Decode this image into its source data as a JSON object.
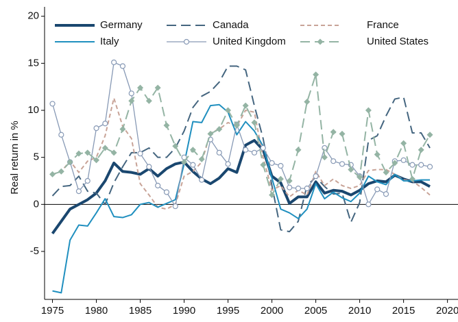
{
  "chart_data": {
    "type": "line",
    "y_label": "Real return in %",
    "x": [
      1975,
      1976,
      1977,
      1978,
      1979,
      1980,
      1981,
      1982,
      1983,
      1984,
      1985,
      1986,
      1987,
      1988,
      1989,
      1990,
      1991,
      1992,
      1993,
      1994,
      1995,
      1996,
      1997,
      1998,
      1999,
      2000,
      2001,
      2002,
      2003,
      2004,
      2005,
      2006,
      2007,
      2008,
      2009,
      2010,
      2011,
      2012,
      2013,
      2014,
      2015,
      2016,
      2017,
      2018
    ],
    "xlim": [
      1974.1,
      2021.2
    ],
    "xticks": [
      1975,
      1980,
      1985,
      1990,
      1995,
      2000,
      2005,
      2010,
      2015,
      2020
    ],
    "ylim": [
      -10.1,
      21
    ],
    "yticks": [
      -5,
      0,
      5,
      10,
      15,
      20
    ],
    "zero_line": true,
    "series": [
      {
        "name": "Germany",
        "color": "#1a476f",
        "width": 4,
        "dash": "none",
        "marker": "none",
        "values": [
          -3.1,
          -1.8,
          -0.5,
          0,
          0.5,
          1.2,
          2.5,
          4.4,
          3.5,
          3.4,
          3.2,
          3.8,
          3.0,
          3.8,
          4.3,
          4.5,
          3.5,
          2.7,
          2.2,
          2.8,
          3.8,
          3.4,
          6.3,
          6.8,
          5.8,
          3.0,
          2.3,
          0.1,
          0.8,
          0.8,
          2.4,
          1.2,
          1.5,
          1.4,
          1.0,
          1.5,
          2.2,
          2.5,
          2.4,
          3.1,
          2.7,
          2.4,
          2.4,
          1.9
        ]
      },
      {
        "name": "Canada",
        "color": "#44657f",
        "width": 2,
        "dash": "long",
        "marker": "none",
        "values": [
          0.9,
          1.9,
          2.0,
          3.0,
          1.4,
          1.2,
          0.0,
          2.3,
          4.0,
          5.5,
          5.5,
          6.0,
          5.0,
          5.0,
          6.0,
          7.8,
          10.3,
          11.5,
          12.0,
          13.0,
          14.7,
          14.7,
          14.3,
          10.5,
          7.0,
          2.0,
          -2.7,
          -2.9,
          -1.8,
          2.0,
          2.9,
          1.9,
          1.1,
          1.2,
          -1.9,
          0.2,
          6.8,
          7.3,
          9.4,
          11.2,
          11.4,
          7.6,
          7.6,
          6.0
        ]
      },
      {
        "name": "France",
        "color": "#c8a397",
        "width": 2,
        "dash": "short",
        "marker": "none",
        "values": [
          3.2,
          3.5,
          4.6,
          3.4,
          4.6,
          5.0,
          7.3,
          11.3,
          8.3,
          7.0,
          2.2,
          1.0,
          -0.3,
          -0.5,
          0,
          3.0,
          3.5,
          4.5,
          7.6,
          8.0,
          8.7,
          8.3,
          10.0,
          9.8,
          5.0,
          1.5,
          2.0,
          0.8,
          1.5,
          1.0,
          3.5,
          2.0,
          2.7,
          2.0,
          1.7,
          2.0,
          3.6,
          3.7,
          3.7,
          3.2,
          2.6,
          2.5,
          1.8,
          1.0
        ]
      },
      {
        "name": "Italy",
        "color": "#1f8fbf",
        "width": 2,
        "dash": "none",
        "marker": "none",
        "values": [
          -9.2,
          -9.4,
          -3.8,
          -2.2,
          -2.3,
          -0.9,
          0.6,
          -1.3,
          -1.4,
          -1.1,
          0,
          0.2,
          -0.3,
          0.1,
          0.5,
          4.3,
          8.8,
          8.7,
          10.5,
          10.6,
          9.8,
          7.4,
          8.8,
          7.8,
          6.2,
          2.8,
          -0.5,
          -0.9,
          -1.5,
          -0.5,
          2.2,
          0.6,
          1.3,
          0.7,
          0.3,
          1.2,
          3.0,
          2.4,
          2.1,
          3.2,
          2.5,
          2.5,
          2.6,
          2.6
        ]
      },
      {
        "name": "United Kingdom",
        "color": "#8799b5",
        "width": 1.3,
        "dash": "none",
        "marker": "circle",
        "values": [
          10.7,
          7.4,
          4.5,
          1.4,
          2.5,
          8.1,
          8.6,
          15.1,
          14.7,
          11.8,
          5.4,
          4.0,
          2.0,
          1.3,
          -0.2,
          5.0,
          4.2,
          2.6,
          6.9,
          5.5,
          4.3,
          8.5,
          5.8,
          5.5,
          6.0,
          4.4,
          4.1,
          1.8,
          1.7,
          1.7,
          3.0,
          6.0,
          4.6,
          4.3,
          4.2,
          3.0,
          0.0,
          1.6,
          1.1,
          4.6,
          4.7,
          4.2,
          4.2,
          4.0
        ]
      },
      {
        "name": "United States",
        "color": "#94b4a4",
        "width": 2,
        "dash": "long",
        "marker": "diamond",
        "values": [
          3.2,
          3.5,
          4.5,
          5.4,
          5.5,
          4.7,
          6.0,
          5.5,
          8.0,
          11.0,
          12.4,
          11.0,
          12.4,
          8.4,
          6.2,
          4.5,
          5.8,
          4.8,
          7.5,
          8.0,
          10.0,
          8.4,
          10.5,
          8.7,
          4.2,
          1.0,
          2.7,
          2.5,
          5.8,
          10.9,
          13.8,
          5.0,
          7.7,
          7.5,
          3.7,
          2.9,
          10.0,
          5.3,
          3.4,
          4.4,
          6.5,
          2.7,
          5.8,
          7.4
        ]
      }
    ]
  }
}
